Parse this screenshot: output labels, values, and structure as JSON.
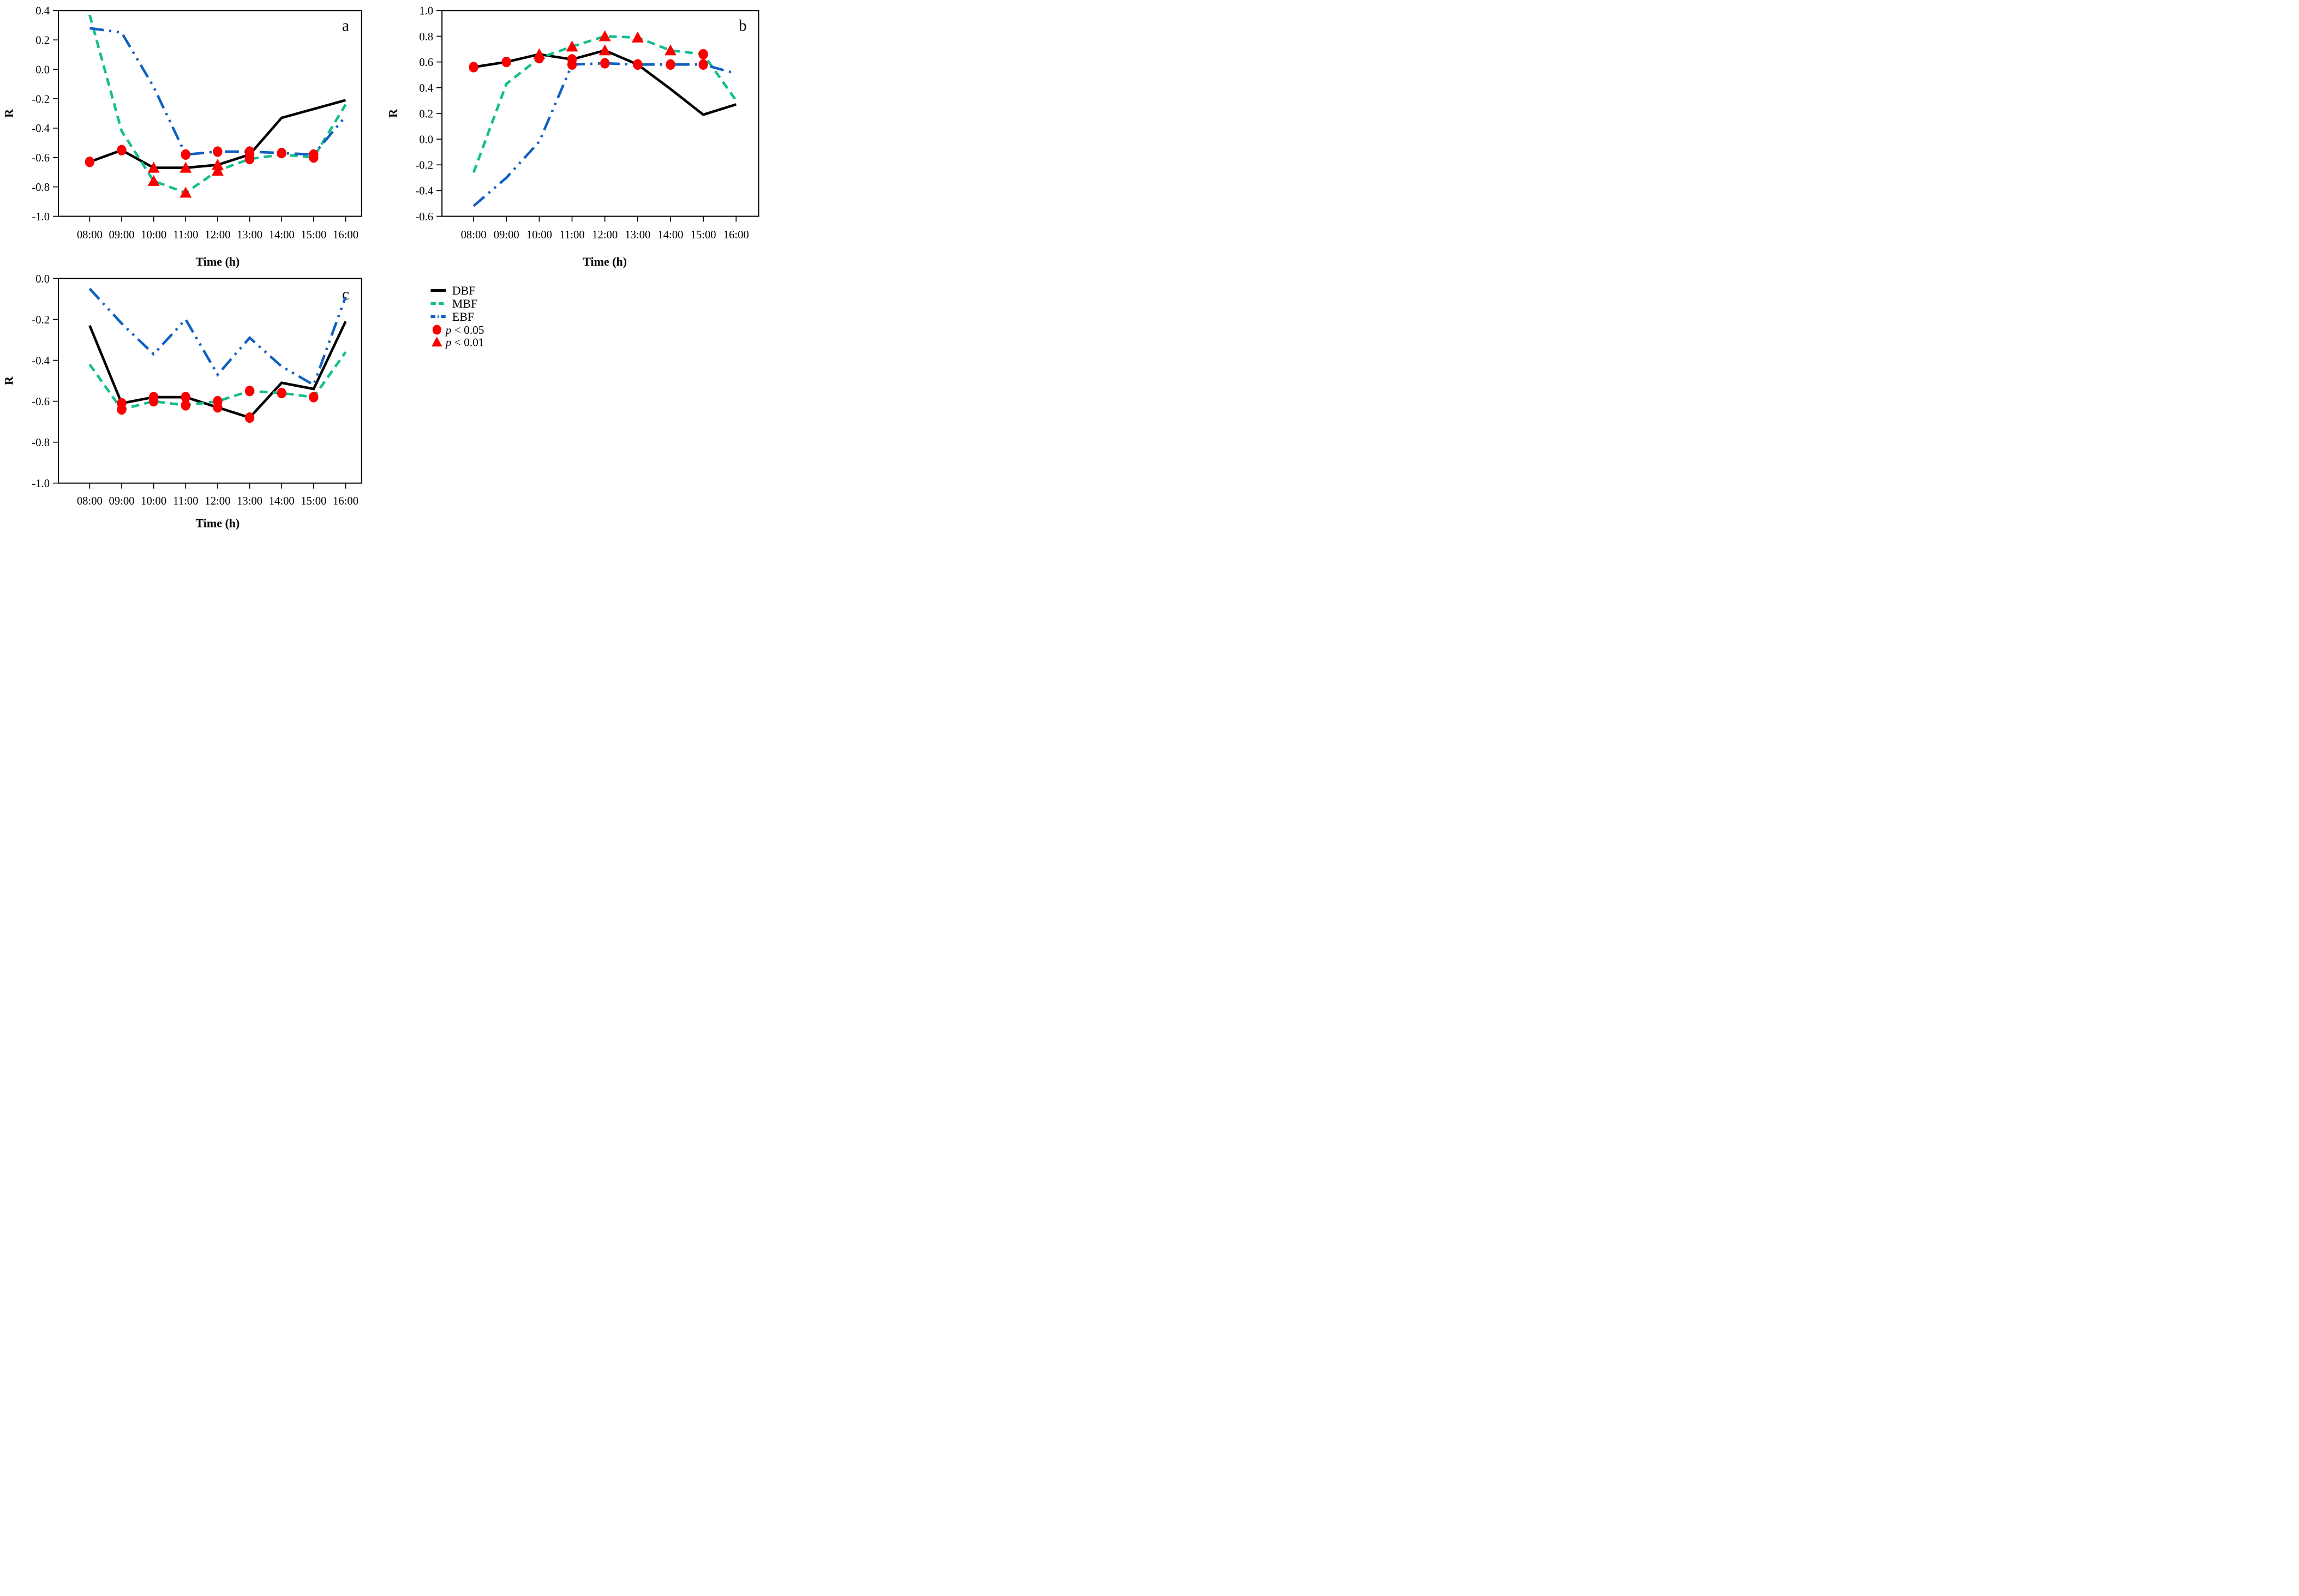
{
  "figure_type": "scientific-line-chart-grid",
  "colors": {
    "DBF": "#000000",
    "MBF": "#11BE8C",
    "EBF": "#1060C2",
    "significance_marker": "#FA0000",
    "axis": "#000000",
    "background": "#FFFFFF"
  },
  "legend": {
    "entries": [
      {
        "name": "DBF",
        "style": "solid"
      },
      {
        "name": "MBF",
        "style": "dashed"
      },
      {
        "name": "EBF",
        "style": "dashdotdot"
      }
    ],
    "significance": [
      {
        "label": "p < 0.05",
        "marker": "circle"
      },
      {
        "label": "p < 0.01",
        "marker": "triangle"
      }
    ]
  },
  "chart_data": [
    {
      "id": "a",
      "type": "line",
      "letter": "a",
      "xlabel": "Time (h)",
      "ylabel": "R",
      "x_categories": [
        "08:00",
        "09:00",
        "10:00",
        "11:00",
        "12:00",
        "13:00",
        "14:00",
        "15:00",
        "16:00"
      ],
      "ylim": [
        -1.0,
        0.4
      ],
      "yticks": [
        0.4,
        0.2,
        0.0,
        -0.2,
        -0.4,
        -0.6,
        -0.8,
        -1.0
      ],
      "series": [
        {
          "name": "DBF",
          "style": "solid",
          "values": [
            -0.63,
            -0.55,
            -0.67,
            -0.67,
            -0.65,
            -0.58,
            -0.33,
            -0.27,
            -0.21
          ]
        },
        {
          "name": "MBF",
          "style": "dashed",
          "values": [
            0.37,
            -0.42,
            -0.76,
            -0.84,
            -0.69,
            -0.61,
            -0.58,
            -0.6,
            -0.24
          ]
        },
        {
          "name": "EBF",
          "style": "dashdotdot",
          "values": [
            0.28,
            0.25,
            -0.12,
            -0.58,
            -0.56,
            -0.56,
            -0.57,
            -0.58,
            -0.32
          ]
        }
      ],
      "significance": {
        "p_0_05_circles": [
          {
            "series": "DBF",
            "time": "08:00"
          },
          {
            "series": "DBF",
            "time": "09:00"
          },
          {
            "series": "DBF",
            "time": "13:00"
          },
          {
            "series": "MBF",
            "time": "13:00"
          },
          {
            "series": "MBF",
            "time": "15:00"
          },
          {
            "series": "EBF",
            "time": "11:00"
          },
          {
            "series": "EBF",
            "time": "12:00"
          },
          {
            "series": "EBF",
            "time": "13:00"
          },
          {
            "series": "EBF",
            "time": "14:00"
          },
          {
            "series": "EBF",
            "time": "15:00"
          }
        ],
        "p_0_01_triangles": [
          {
            "series": "DBF",
            "time": "10:00"
          },
          {
            "series": "DBF",
            "time": "11:00"
          },
          {
            "series": "DBF",
            "time": "12:00"
          },
          {
            "series": "MBF",
            "time": "10:00"
          },
          {
            "series": "MBF",
            "time": "11:00"
          },
          {
            "series": "MBF",
            "time": "12:00"
          }
        ]
      }
    },
    {
      "id": "b",
      "type": "line",
      "letter": "b",
      "xlabel": "Time (h)",
      "ylabel": "R",
      "x_categories": [
        "08:00",
        "09:00",
        "10:00",
        "11:00",
        "12:00",
        "13:00",
        "14:00",
        "15:00",
        "16:00"
      ],
      "ylim": [
        -0.6,
        1.0
      ],
      "yticks": [
        1.0,
        0.8,
        0.6,
        0.4,
        0.2,
        0.0,
        -0.2,
        -0.4,
        -0.6
      ],
      "series": [
        {
          "name": "DBF",
          "style": "solid",
          "values": [
            0.56,
            0.6,
            0.66,
            0.62,
            0.69,
            0.58,
            0.39,
            0.19,
            0.27
          ]
        },
        {
          "name": "MBF",
          "style": "dashed",
          "values": [
            -0.26,
            0.43,
            0.63,
            0.72,
            0.8,
            0.79,
            0.69,
            0.66,
            0.3
          ]
        },
        {
          "name": "EBF",
          "style": "dashdotdot",
          "values": [
            -0.52,
            -0.3,
            -0.02,
            0.58,
            0.59,
            0.58,
            0.58,
            0.58,
            0.51
          ]
        }
      ],
      "significance": {
        "p_0_05_circles": [
          {
            "series": "DBF",
            "time": "08:00"
          },
          {
            "series": "DBF",
            "time": "09:00"
          },
          {
            "series": "DBF",
            "time": "11:00"
          },
          {
            "series": "DBF",
            "time": "13:00"
          },
          {
            "series": "MBF",
            "time": "10:00"
          },
          {
            "series": "MBF",
            "time": "15:00"
          },
          {
            "series": "EBF",
            "time": "11:00"
          },
          {
            "series": "EBF",
            "time": "12:00"
          },
          {
            "series": "EBF",
            "time": "13:00"
          },
          {
            "series": "EBF",
            "time": "14:00"
          },
          {
            "series": "EBF",
            "time": "15:00"
          }
        ],
        "p_0_01_triangles": [
          {
            "series": "DBF",
            "time": "10:00"
          },
          {
            "series": "DBF",
            "time": "12:00"
          },
          {
            "series": "MBF",
            "time": "11:00"
          },
          {
            "series": "MBF",
            "time": "12:00"
          },
          {
            "series": "MBF",
            "time": "13:00"
          },
          {
            "series": "MBF",
            "time": "14:00"
          }
        ]
      }
    },
    {
      "id": "c",
      "type": "line",
      "letter": "c",
      "xlabel": "Time (h)",
      "ylabel": "R",
      "x_categories": [
        "08:00",
        "09:00",
        "10:00",
        "11:00",
        "12:00",
        "13:00",
        "14:00",
        "15:00",
        "16:00"
      ],
      "ylim": [
        -1.0,
        0.0
      ],
      "yticks": [
        0.0,
        -0.2,
        -0.4,
        -0.6,
        -0.8,
        -1.0
      ],
      "series": [
        {
          "name": "DBF",
          "style": "solid",
          "values": [
            -0.23,
            -0.61,
            -0.58,
            -0.58,
            -0.63,
            -0.68,
            -0.51,
            -0.54,
            -0.21
          ]
        },
        {
          "name": "MBF",
          "style": "dashed",
          "values": [
            -0.42,
            -0.64,
            -0.6,
            -0.62,
            -0.6,
            -0.55,
            -0.56,
            -0.58,
            -0.36
          ]
        },
        {
          "name": "EBF",
          "style": "dashdotdot",
          "values": [
            -0.05,
            -0.22,
            -0.37,
            -0.2,
            -0.47,
            -0.29,
            -0.43,
            -0.52,
            -0.09
          ]
        }
      ],
      "significance": {
        "p_0_05_circles": [
          {
            "series": "DBF",
            "time": "09:00"
          },
          {
            "series": "DBF",
            "time": "10:00"
          },
          {
            "series": "DBF",
            "time": "11:00"
          },
          {
            "series": "DBF",
            "time": "12:00"
          },
          {
            "series": "DBF",
            "time": "13:00"
          },
          {
            "series": "MBF",
            "time": "09:00"
          },
          {
            "series": "MBF",
            "time": "10:00"
          },
          {
            "series": "MBF",
            "time": "11:00"
          },
          {
            "series": "MBF",
            "time": "12:00"
          },
          {
            "series": "MBF",
            "time": "13:00"
          },
          {
            "series": "MBF",
            "time": "14:00"
          },
          {
            "series": "MBF",
            "time": "15:00"
          }
        ],
        "p_0_01_triangles": []
      }
    }
  ]
}
